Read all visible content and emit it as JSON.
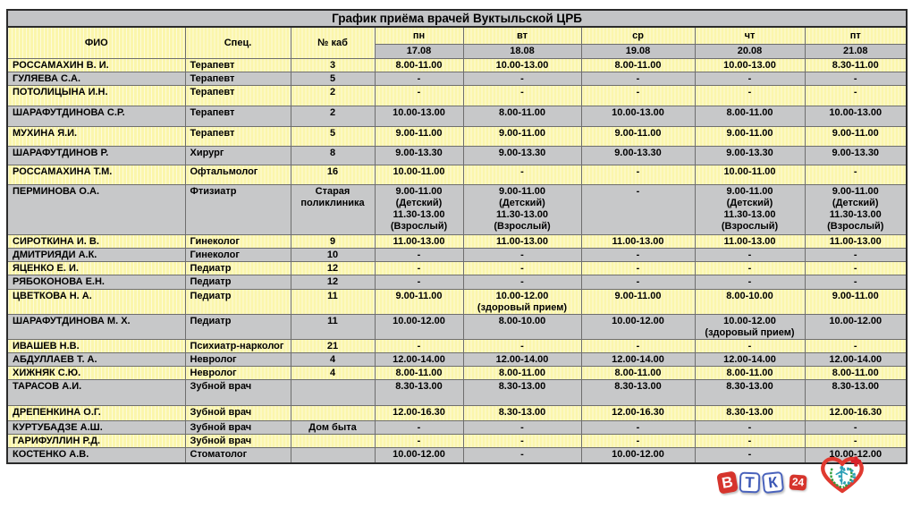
{
  "title": "График приёма врачей Вуктыльской ЦРБ",
  "header": {
    "fio": "ФИО",
    "spec": "Спец.",
    "kab": "№ каб"
  },
  "days": [
    {
      "label": "пн",
      "date": "17.08"
    },
    {
      "label": "вт",
      "date": "18.08"
    },
    {
      "label": "ср",
      "date": "19.08"
    },
    {
      "label": "чт",
      "date": "20.08"
    },
    {
      "label": "пт",
      "date": "21.08"
    }
  ],
  "rows": [
    {
      "fio": "РОССАМАХИН В. И.",
      "spec": "Терапевт",
      "kab": "3",
      "times": [
        "8.00-11.00",
        "10.00-13.00",
        "8.00-11.00",
        "10.00-13.00",
        "8.30-11.00"
      ]
    },
    {
      "fio": "ГУЛЯЕВА С.А.",
      "spec": "Терапевт",
      "kab": "5",
      "times": [
        "-",
        "-",
        "-",
        "-",
        "-"
      ]
    },
    {
      "fio": "ПОТОЛИЦЫНА И.Н.",
      "spec": "Терапевт",
      "kab": "2",
      "times": [
        "-",
        "-",
        "-",
        "-",
        "-"
      ]
    },
    {
      "fio": "ШАРАФУТДИНОВА С.Р.",
      "spec": "Терапевт",
      "kab": "2",
      "times": [
        "10.00-13.00",
        "8.00-11.00",
        "10.00-13.00",
        "8.00-11.00",
        "10.00-13.00"
      ]
    },
    {
      "fio": "МУХИНА Я.И.",
      "spec": "Терапевт",
      "kab": "5",
      "times": [
        "9.00-11.00",
        "9.00-11.00",
        "9.00-11.00",
        "9.00-11.00",
        "9.00-11.00"
      ]
    },
    {
      "fio": "ШАРАФУТДИНОВ Р.",
      "spec": "Хирург",
      "kab": "8",
      "times": [
        "9.00-13.30",
        "9.00-13.30",
        "9.00-13.30",
        "9.00-13.30",
        "9.00-13.30"
      ]
    },
    {
      "fio": "РОССАМАХИНА Т.М.",
      "spec": "Офтальмолог",
      "kab": "16",
      "times": [
        "10.00-11.00",
        "-",
        "-",
        "10.00-11.00",
        "-"
      ]
    },
    {
      "fio": "ПЕРМИНОВА О.А.",
      "spec": "Фтизиатр",
      "kab": "Старая\nполиклиника",
      "times": [
        "9.00-11.00\n(Детский)\n11.30-13.00\n(Взрослый)",
        "9.00-11.00\n(Детский)\n11.30-13.00\n(Взрослый)",
        "-",
        "9.00-11.00\n(Детский)\n11.30-13.00\n(Взрослый)",
        "9.00-11.00\n(Детский)\n11.30-13.00\n(Взрослый)"
      ]
    },
    {
      "fio": "СИРОТКИНА И. В.",
      "spec": "Гинеколог",
      "kab": "9",
      "times": [
        "11.00-13.00",
        "11.00-13.00",
        "11.00-13.00",
        "11.00-13.00",
        "11.00-13.00"
      ]
    },
    {
      "fio": "ДМИТРИЯДИ А.К.",
      "spec": "Гинеколог",
      "kab": "10",
      "times": [
        "-",
        "-",
        "-",
        "-",
        "-"
      ]
    },
    {
      "fio": "ЯЦЕНКО Е. И.",
      "spec": "Педиатр",
      "kab": "12",
      "times": [
        "-",
        "-",
        "-",
        "-",
        "-"
      ]
    },
    {
      "fio": "РЯБОКОНОВА Е.Н.",
      "spec": "Педиатр",
      "kab": "12",
      "times": [
        "-",
        "-",
        "-",
        "-",
        "-"
      ]
    },
    {
      "fio": "ЦВЕТКОВА Н. А.",
      "spec": "Педиатр",
      "kab": "11",
      "times": [
        "9.00-11.00",
        "10.00-12.00\n(здоровый прием)",
        "9.00-11.00",
        "8.00-10.00",
        "9.00-11.00"
      ]
    },
    {
      "fio": "ШАРАФУТДИНОВА М. Х.",
      "spec": "Педиатр",
      "kab": "11",
      "times": [
        "10.00-12.00",
        "8.00-10.00",
        "10.00-12.00",
        "10.00-12.00\n(здоровый прием)",
        "10.00-12.00"
      ]
    },
    {
      "fio": "ИВАШЕВ Н.В.",
      "spec": "Психиатр-нарколог",
      "kab": "21",
      "times": [
        "-",
        "-",
        "-",
        "-",
        "-"
      ]
    },
    {
      "fio": "АБДУЛЛАЕВ Т. А.",
      "spec": "Невролог",
      "kab": "4",
      "times": [
        "12.00-14.00",
        "12.00-14.00",
        "12.00-14.00",
        "12.00-14.00",
        "12.00-14.00"
      ]
    },
    {
      "fio": "ХИЖНЯК С.Ю.",
      "spec": "Невролог",
      "kab": "4",
      "times": [
        "8.00-11.00",
        "8.00-11.00",
        "8.00-11.00",
        "8.00-11.00",
        "8.00-11.00"
      ]
    },
    {
      "fio": "ТАРАСОВ А.И.",
      "spec": "Зубной врач",
      "kab": "",
      "times": [
        "8.30-13.00",
        "8.30-13.00",
        "8.30-13.00",
        "8.30-13.00",
        "8.30-13.00"
      ]
    },
    {
      "fio": "ДРЕПЕНКИНА О.Г.",
      "spec": "Зубной врач",
      "kab": "",
      "times": [
        "12.00-16.30",
        "8.30-13.00",
        "12.00-16.30",
        "8.30-13.00",
        "12.00-16.30"
      ]
    },
    {
      "fio": "КУРТУБАДЗЕ А.Ш.",
      "spec": "Зубной врач",
      "kab": "Дом быта",
      "times": [
        "-",
        "-",
        "-",
        "-",
        "-"
      ]
    },
    {
      "fio": "ГАРИФУЛЛИН Р.Д.",
      "spec": "Зубной врач",
      "kab": "",
      "times": [
        "-",
        "-",
        "-",
        "-",
        "-"
      ]
    },
    {
      "fio": "КОСТЕНКО А.В.",
      "spec": "Стоматолог",
      "kab": "",
      "times": [
        "10.00-12.00",
        "-",
        "10.00-12.00",
        "-",
        "10.00-12.00"
      ]
    }
  ],
  "logos": {
    "vtk_letters": [
      "В",
      "Т",
      "К"
    ],
    "vtk_badge": "24",
    "heart_logo": "hospital-heart-emblem"
  },
  "colors": {
    "row_yellow": "#FBF6AC",
    "row_gray": "#C7C8C9",
    "header_gray": "#C3C4C6",
    "logo_red": "#D6342C",
    "logo_blue": "#3B57B5",
    "logo_green": "#2F9E3C",
    "logo_teal": "#2C9FB5"
  }
}
